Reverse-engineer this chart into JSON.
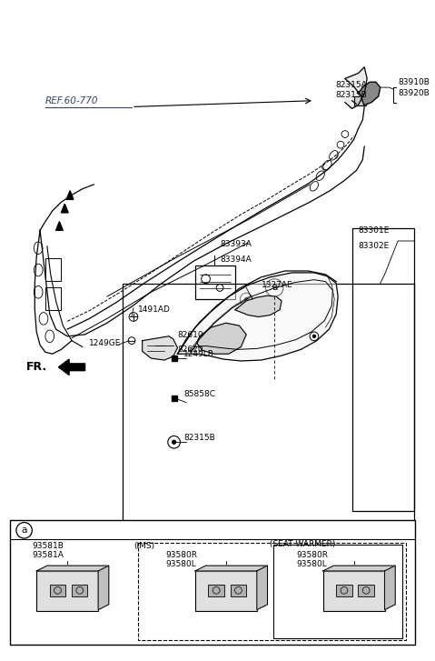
{
  "bg_color": "#ffffff",
  "lc": "#000000",
  "figsize": [
    4.79,
    7.27
  ],
  "dpi": 100,
  "ref_label": "REF.60-770",
  "fr_label": "FR.",
  "fs": 6.5,
  "parts_labels": {
    "83910B_83920B": "83910B\n83920B",
    "82315A_82315B": "82315A\n82315B",
    "83393A_83394A": "83393A\n83394A",
    "1327AE": "1327AE",
    "83301E_83302E": "83301E\n83302E",
    "1491AD": "1491AD",
    "82610_82620": "82610\n82620",
    "1249GE": "1249GE",
    "1249LB": "1249LB",
    "85858C": "85858C",
    "82315B": "82315B",
    "93581B_93581A": "93581B\n93581A",
    "IMS": "(IMS)",
    "93580R_93580L_ims": "93580R\n93580L",
    "SEAT_WARMER": "(SEAT WARMER)",
    "93580R_93580L_sw": "93580R\n93580L"
  }
}
